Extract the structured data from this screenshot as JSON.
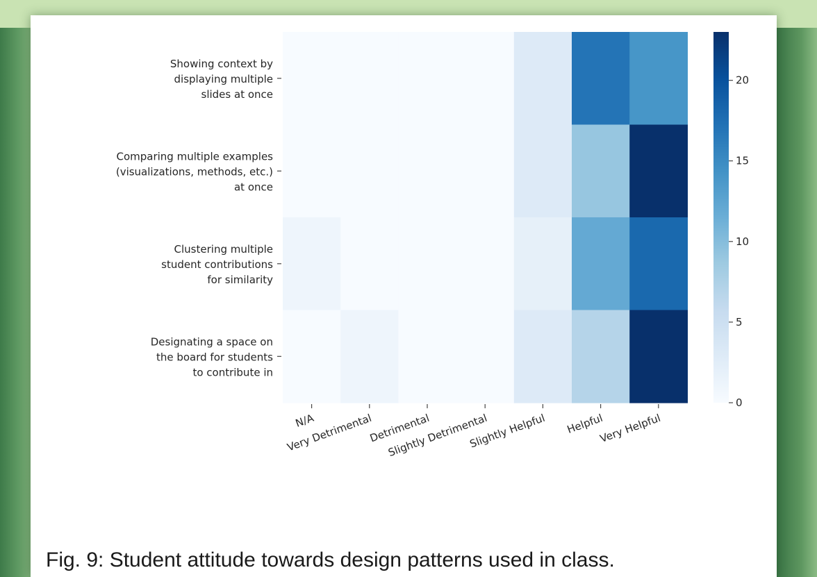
{
  "caption": "Fig. 9: Student attitude towards design patterns used in class.",
  "chart_data": {
    "type": "heatmap",
    "title": "",
    "xlabel": "",
    "ylabel": "",
    "rows": [
      [
        "Showing context by",
        "displaying multiple",
        "slides at once"
      ],
      [
        "Comparing multiple examples",
        "(visualizations, methods, etc.)",
        "at once"
      ],
      [
        "Clustering multiple",
        "student contributions",
        "for similarity"
      ],
      [
        "Designating a space on",
        "the board for students",
        "to contribute in"
      ]
    ],
    "columns": [
      "N/A",
      "Very Detrimental",
      "Detrimental",
      "Slightly Detrimental",
      "Slightly Helpful",
      "Helpful",
      "Very Helpful"
    ],
    "values": [
      [
        0,
        0,
        0,
        0,
        3,
        17,
        14
      ],
      [
        0,
        0,
        0,
        0,
        3,
        9,
        23
      ],
      [
        1,
        0,
        0,
        0,
        2,
        12,
        18
      ],
      [
        0,
        1,
        0,
        0,
        3,
        7,
        23
      ]
    ],
    "colorbar": {
      "min": 0,
      "max": 23,
      "ticks": [
        0,
        5,
        10,
        15,
        20
      ]
    },
    "colormap": [
      "#f7fbff",
      "#deebf7",
      "#c6dbef",
      "#9ecae1",
      "#6baed6",
      "#4292c6",
      "#2171b5",
      "#08519c",
      "#08306b"
    ],
    "background_color": "#ffffff",
    "frame_color": "#4c8a55"
  }
}
